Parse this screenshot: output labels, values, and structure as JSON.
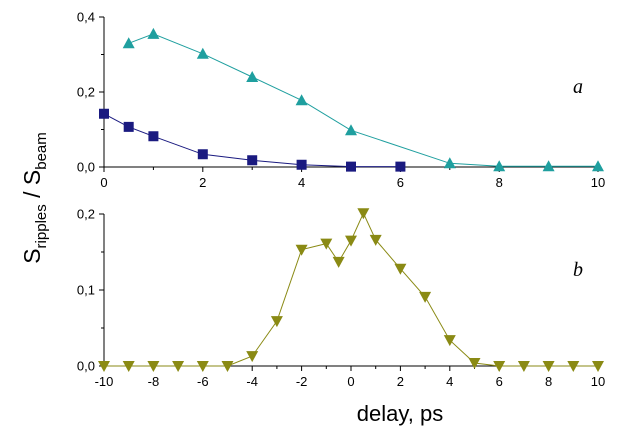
{
  "chart_data": [
    {
      "type": "line",
      "panel_label": "a",
      "xlim": [
        0,
        10
      ],
      "ylim": [
        0,
        0.4
      ],
      "x_ticks": [
        0,
        2,
        4,
        6,
        8,
        10
      ],
      "x_tick_labels": [
        "0",
        "2",
        "4",
        "6",
        "8",
        "10"
      ],
      "y_ticks": [
        0,
        0.2,
        0.4
      ],
      "y_tick_labels": [
        "0,0",
        "0,2",
        "0,4"
      ],
      "grid": false,
      "series": [
        {
          "marker": "triangle-up",
          "color": "#1f9f9f",
          "x": [
            0.5,
            1,
            2,
            3,
            4,
            5,
            7,
            8,
            9,
            10
          ],
          "y": [
            0.33,
            0.355,
            0.302,
            0.24,
            0.178,
            0.098,
            0.01,
            0.002,
            0.002,
            0.002
          ]
        },
        {
          "marker": "square",
          "color": "#1a1a80",
          "x": [
            0,
            0.5,
            1,
            2,
            3,
            4,
            5,
            6
          ],
          "y": [
            0.142,
            0.107,
            0.082,
            0.034,
            0.018,
            0.006,
            0.001,
            0.001
          ]
        }
      ]
    },
    {
      "type": "line",
      "panel_label": "b",
      "xlim": [
        -10,
        10
      ],
      "ylim": [
        0,
        0.2
      ],
      "x_ticks": [
        -10,
        -8,
        -6,
        -4,
        -2,
        0,
        2,
        4,
        6,
        8,
        10
      ],
      "x_tick_labels": [
        "-10",
        "-8",
        "-6",
        "-4",
        "-2",
        "0",
        "2",
        "4",
        "6",
        "8",
        "10"
      ],
      "y_ticks": [
        0,
        0.1,
        0.2
      ],
      "y_tick_labels": [
        "0,0",
        "0,1",
        "0,2"
      ],
      "grid": false,
      "series": [
        {
          "marker": "triangle-down",
          "color": "#8a8a14",
          "x": [
            -10,
            -9,
            -8,
            -7,
            -6,
            -5,
            -4,
            -3,
            -2,
            -1,
            -0.5,
            0,
            0.5,
            1,
            2,
            3,
            4,
            5,
            6,
            7,
            8,
            9,
            10
          ],
          "y": [
            0,
            0,
            0,
            0,
            0,
            0,
            0.013,
            0.059,
            0.153,
            0.161,
            0.137,
            0.165,
            0.201,
            0.166,
            0.128,
            0.091,
            0.034,
            0.004,
            0,
            0,
            0,
            0,
            0
          ]
        }
      ]
    }
  ],
  "y_title": {
    "main": "S",
    "main_sub": "ripples",
    "separator": " / ",
    "denominator": "S",
    "denominator_sub": "beam"
  },
  "x_title": "delay, ps"
}
